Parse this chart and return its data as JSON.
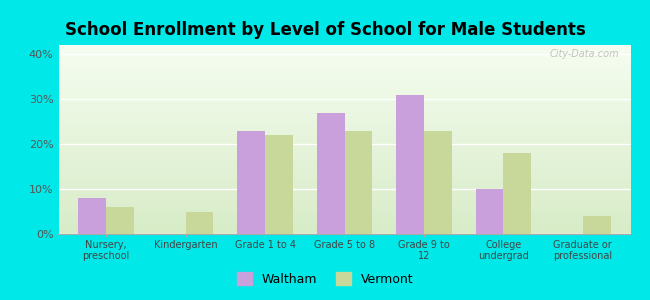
{
  "title": "School Enrollment by Level of School for Male Students",
  "categories": [
    "Nursery,\npreschool",
    "Kindergarten",
    "Grade 1 to 4",
    "Grade 5 to 8",
    "Grade 9 to\n12",
    "College\nundergrad",
    "Graduate or\nprofessional"
  ],
  "waltham": [
    8,
    0,
    23,
    27,
    31,
    10,
    0
  ],
  "vermont": [
    6,
    5,
    22,
    23,
    23,
    18,
    4
  ],
  "waltham_color": "#c9a0dc",
  "vermont_color": "#c8d89a",
  "background_color": "#00e8e8",
  "title_fontsize": 12,
  "ylabel_ticks": [
    0,
    10,
    20,
    30,
    40
  ],
  "ylim": [
    0,
    42
  ],
  "bar_width": 0.35,
  "legend_labels": [
    "Waltham",
    "Vermont"
  ],
  "watermark": "City-Data.com"
}
